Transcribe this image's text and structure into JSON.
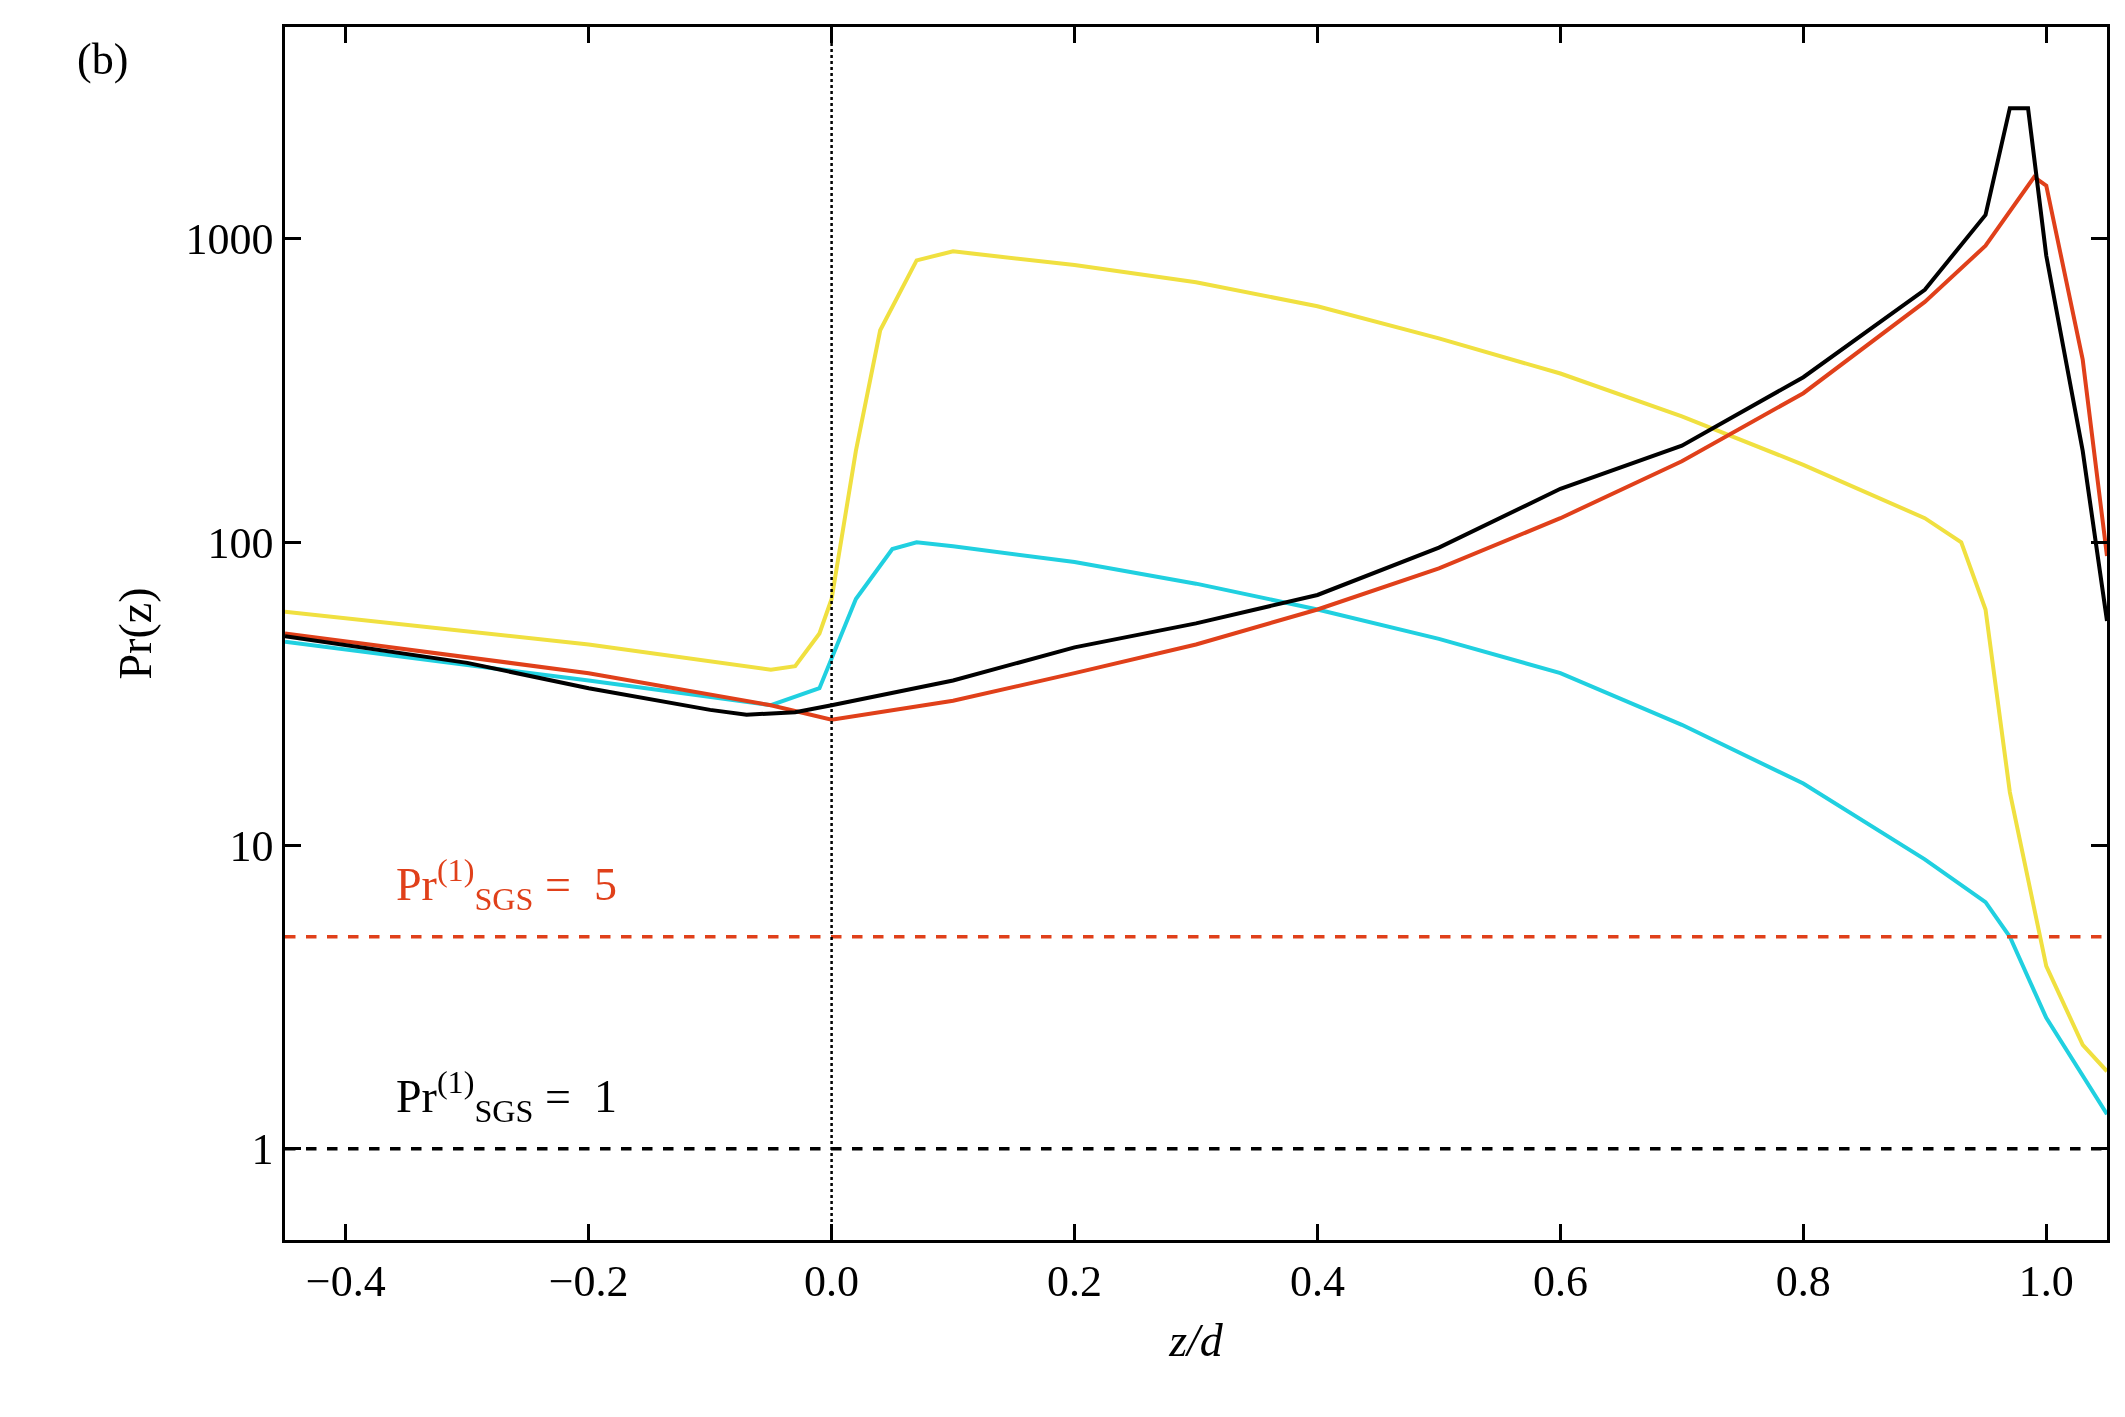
{
  "chart_data": {
    "type": "line",
    "xlabel": "z/d",
    "ylabel": "Pr(z)",
    "annotations": [
      "(b)"
    ],
    "log": "y",
    "grid": false,
    "marker": "none",
    "line_style": "solid",
    "xlim": [
      -0.45,
      1.05
    ],
    "xticks": [
      {
        "value": -0.4,
        "label": "−0.4"
      },
      {
        "value": -0.2,
        "label": "−0.2"
      },
      {
        "value": 0,
        "label": "0.0"
      },
      0.2,
      0.4,
      0.6,
      0.8,
      {
        "value": 1,
        "label": "1.0"
      }
    ],
    "ylim": [
      0.5,
      5000
    ],
    "yticks": [
      1,
      10,
      100,
      1000
    ],
    "ref_lines": [
      {
        "axis": "y",
        "value": 5,
        "label": "Pr$^{(1)}$$_{SGS}$ =  5",
        "color": "#e0401a",
        "line_style": "dashed"
      },
      {
        "axis": "y",
        "value": 1,
        "label": "Pr$^{(1)}$$_{SGS}$ =  1",
        "color": "#000000",
        "line_style": "dashed"
      },
      {
        "axis": "x",
        "value": 0,
        "color": "#000000",
        "line_style": "dotted"
      }
    ],
    "series": [
      {
        "color": "#f0e040",
        "x": [
          -0.45,
          -0.2,
          -0.05,
          -0.03,
          -0.01,
          0,
          0.02,
          0.04,
          0.07,
          0.1,
          0.2,
          0.3,
          0.4,
          0.5,
          0.6,
          0.7,
          0.8,
          0.9,
          0.93,
          0.95,
          0.97,
          1,
          1.03,
          1.05
        ],
        "values": [
          59,
          46,
          38,
          39,
          50,
          65,
          200,
          500,
          850,
          910,
          820,
          720,
          600,
          470,
          360,
          260,
          180,
          120,
          100,
          60,
          15,
          4,
          2.2,
          1.8
        ]
      },
      {
        "color": "#20d0e0",
        "x": [
          -0.45,
          -0.2,
          -0.05,
          -0.01,
          0.02,
          0.05,
          0.07,
          0.1,
          0.2,
          0.3,
          0.4,
          0.5,
          0.6,
          0.7,
          0.8,
          0.9,
          0.95,
          0.97,
          1,
          1.05
        ],
        "values": [
          47,
          35,
          29,
          33,
          65,
          95,
          100,
          97,
          86,
          73,
          60,
          48,
          37,
          25,
          16,
          9,
          6.5,
          5,
          2.7,
          1.3
        ]
      },
      {
        "color": "#e0401a",
        "x": [
          -0.45,
          -0.2,
          -0.05,
          0,
          0.1,
          0.2,
          0.3,
          0.4,
          0.5,
          0.6,
          0.7,
          0.8,
          0.9,
          0.95,
          0.99,
          1,
          1.03,
          1.05
        ],
        "values": [
          50,
          37,
          29,
          26,
          30,
          37,
          46,
          60,
          82,
          120,
          185,
          310,
          620,
          950,
          1600,
          1500,
          400,
          90
        ]
      },
      {
        "color": "#000000",
        "x": [
          -0.45,
          -0.3,
          -0.2,
          -0.1,
          -0.07,
          -0.03,
          0,
          0.1,
          0.2,
          0.3,
          0.4,
          0.5,
          0.6,
          0.7,
          0.8,
          0.9,
          0.95,
          0.97,
          0.985,
          1,
          1.03,
          1.05
        ],
        "values": [
          49,
          40,
          33,
          28,
          27,
          27.5,
          29,
          35,
          45,
          54,
          67,
          96,
          150,
          208,
          350,
          680,
          1200,
          2700,
          2700,
          880,
          200,
          55
        ]
      }
    ]
  }
}
